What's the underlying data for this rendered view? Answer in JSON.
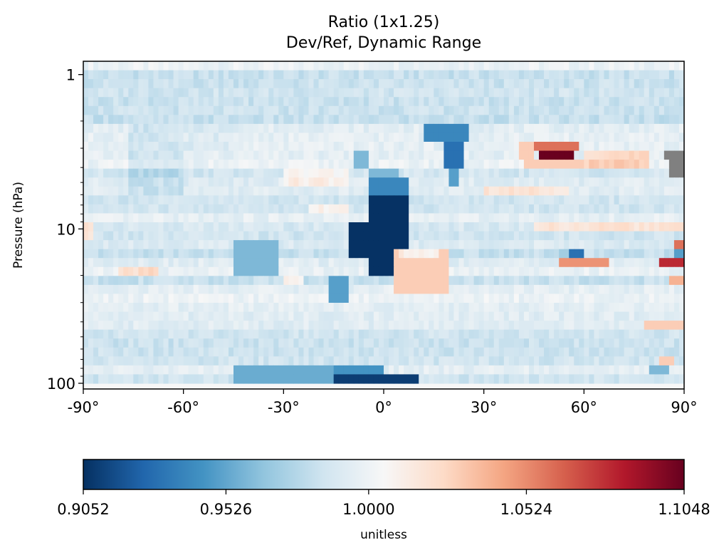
{
  "chart_data": {
    "type": "heatmap",
    "title": "Ratio (1x1.25)",
    "subtitle": "Dev/Ref, Dynamic Range",
    "xlabel": "",
    "ylabel": "Pressure (hPa)",
    "xlim": [
      -90,
      90
    ],
    "ylim": [
      1,
      100
    ],
    "y_scale": "log",
    "y_inverted": true,
    "x_ticks": [
      -90,
      -60,
      -30,
      0,
      30,
      60,
      90
    ],
    "x_tick_labels": [
      "-90°",
      "-60°",
      "-30°",
      "0°",
      "30°",
      "60°",
      "90°"
    ],
    "y_ticks": [
      1,
      10,
      100
    ],
    "y_tick_labels": [
      "1",
      "10",
      "100"
    ],
    "colorbar": {
      "min": 0.9052,
      "max": 1.1048,
      "ticks": [
        0.9052,
        0.9526,
        1.0,
        1.0524,
        1.1048
      ],
      "tick_labels": [
        "0.9052",
        "0.9526",
        "1.0000",
        "1.0524",
        "1.1048"
      ],
      "label": "unitless",
      "colormap": "RdBu_r"
    },
    "missing_color": "#808080",
    "background_value": 0.996,
    "features": [
      {
        "lat": [
          -90,
          90
        ],
        "p": [
          1,
          100
        ],
        "value": 0.99,
        "shape": "rect"
      },
      {
        "lat": [
          -4,
          8
        ],
        "p": [
          6,
          20
        ],
        "value": 0.906,
        "shape": "rect"
      },
      {
        "lat": [
          -10,
          3
        ],
        "p": [
          9,
          16
        ],
        "value": 0.906,
        "shape": "rect"
      },
      {
        "lat": [
          -5,
          8
        ],
        "p": [
          4.8,
          6
        ],
        "value": 0.94,
        "shape": "rect"
      },
      {
        "lat": [
          -4,
          5
        ],
        "p": [
          4,
          4.8
        ],
        "value": 0.96,
        "shape": "rect"
      },
      {
        "lat": [
          3,
          20
        ],
        "p": [
          14,
          26
        ],
        "value": 1.03,
        "shape": "rect"
      },
      {
        "lat": [
          4,
          17
        ],
        "p": [
          13.5,
          15
        ],
        "value": 1.02,
        "shape": "rect"
      },
      {
        "lat": [
          12,
          26
        ],
        "p": [
          2,
          2.6
        ],
        "value": 0.94,
        "shape": "rect"
      },
      {
        "lat": [
          18,
          24
        ],
        "p": [
          2.6,
          4
        ],
        "value": 0.93,
        "shape": "rect"
      },
      {
        "lat": [
          20,
          23
        ],
        "p": [
          4,
          5.5
        ],
        "value": 0.95,
        "shape": "rect"
      },
      {
        "lat": [
          45,
          58
        ],
        "p": [
          2.6,
          3.1
        ],
        "value": 1.06,
        "shape": "rect"
      },
      {
        "lat": [
          47,
          57
        ],
        "p": [
          3.1,
          3.6
        ],
        "value": 1.104,
        "shape": "rect"
      },
      {
        "lat": [
          42,
          60
        ],
        "p": [
          3.6,
          4.3
        ],
        "value": 1.03,
        "shape": "rect"
      },
      {
        "lat": [
          41,
          45
        ],
        "p": [
          2.6,
          3.6
        ],
        "value": 1.03,
        "shape": "rect"
      },
      {
        "lat": [
          60,
          79
        ],
        "p": [
          3.3,
          4.3
        ],
        "value": 1.02,
        "shape": "rect"
      },
      {
        "lat": [
          85,
          90
        ],
        "p": [
          3.2,
          4.5
        ],
        "value": null,
        "shape": "rect"
      },
      {
        "lat": [
          84,
          87
        ],
        "p": [
          3.2,
          3.7
        ],
        "value": null,
        "shape": "rect"
      },
      {
        "lat": [
          87,
          90
        ],
        "p": [
          11.5,
          13.5
        ],
        "value": 1.06,
        "shape": "rect"
      },
      {
        "lat": [
          87,
          90
        ],
        "p": [
          13.5,
          15
        ],
        "value": 0.95,
        "shape": "rect"
      },
      {
        "lat": [
          82,
          90
        ],
        "p": [
          15,
          17.5
        ],
        "value": 1.08,
        "shape": "rect"
      },
      {
        "lat": [
          85,
          90
        ],
        "p": [
          20,
          23
        ],
        "value": 1.04,
        "shape": "rect"
      },
      {
        "lat": [
          78,
          90
        ],
        "p": [
          40,
          47
        ],
        "value": 1.03,
        "shape": "rect"
      },
      {
        "lat": [
          82,
          87
        ],
        "p": [
          70,
          80
        ],
        "value": 1.03,
        "shape": "rect"
      },
      {
        "lat": [
          80,
          86
        ],
        "p": [
          80,
          92
        ],
        "value": 0.96,
        "shape": "rect"
      },
      {
        "lat": [
          52,
          68
        ],
        "p": [
          15,
          17.5
        ],
        "value": 1.05,
        "shape": "rect"
      },
      {
        "lat": [
          56,
          60
        ],
        "p": [
          13,
          15
        ],
        "value": 0.93,
        "shape": "rect"
      },
      {
        "lat": [
          52,
          56
        ],
        "p": [
          13,
          15
        ],
        "value": 0.97,
        "shape": "rect"
      },
      {
        "lat": [
          -15,
          10
        ],
        "p": [
          90,
          100
        ],
        "value": 0.91,
        "shape": "rect"
      },
      {
        "lat": [
          -45,
          -15
        ],
        "p": [
          80,
          100
        ],
        "value": 0.955,
        "shape": "rect"
      },
      {
        "lat": [
          -15,
          0
        ],
        "p": [
          80,
          92
        ],
        "value": 0.945,
        "shape": "rect"
      },
      {
        "lat": [
          -45,
          -32
        ],
        "p": [
          12,
          20
        ],
        "value": 0.96,
        "shape": "rect"
      },
      {
        "lat": [
          -17,
          -11
        ],
        "p": [
          20,
          32
        ],
        "value": 0.95,
        "shape": "rect"
      },
      {
        "lat": [
          -9,
          -4
        ],
        "p": [
          3,
          3.9
        ],
        "value": 0.96,
        "shape": "rect"
      },
      {
        "lat": [
          -30,
          -24
        ],
        "p": [
          20,
          23
        ],
        "value": 1.02,
        "shape": "rect"
      },
      {
        "lat": [
          -76,
          -60
        ],
        "p": [
          2,
          6
        ],
        "value": 0.98,
        "shape": "rect"
      },
      {
        "lat": [
          -60,
          -45
        ],
        "p": [
          2,
          3
        ],
        "value": 0.985,
        "shape": "rect"
      },
      {
        "lat": [
          -30,
          -10
        ],
        "p": [
          4,
          5
        ],
        "value": 1.01,
        "shape": "rect"
      },
      {
        "lat": [
          -22,
          -10
        ],
        "p": [
          6.5,
          7.5
        ],
        "value": 1.015,
        "shape": "rect"
      },
      {
        "lat": [
          45,
          90
        ],
        "p": [
          9.5,
          10.5
        ],
        "value": 1.02,
        "shape": "rect"
      },
      {
        "lat": [
          30,
          55
        ],
        "p": [
          5,
          6
        ],
        "value": 1.015,
        "shape": "rect"
      },
      {
        "lat": [
          -90,
          -87
        ],
        "p": [
          9.5,
          11.5
        ],
        "value": 1.02,
        "shape": "rect"
      },
      {
        "lat": [
          -80,
          -68
        ],
        "p": [
          17,
          20
        ],
        "value": 1.015,
        "shape": "rect"
      }
    ]
  }
}
